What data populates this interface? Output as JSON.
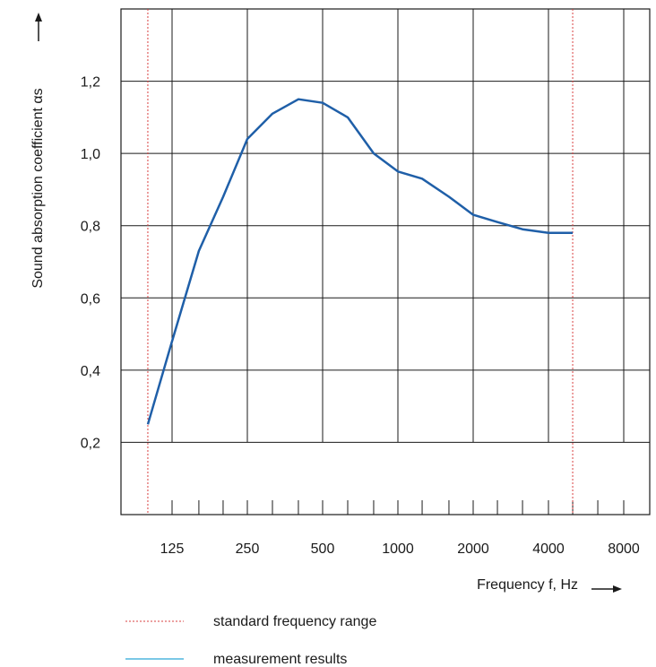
{
  "chart_data": {
    "type": "line",
    "xlabel": "Frequency f, Hz",
    "ylabel": "Sound absorption coefficient αs",
    "x_tick_labels": [
      "125",
      "250",
      "500",
      "1000",
      "2000",
      "4000",
      "8000"
    ],
    "y_tick_labels": [
      "0,2",
      "0,4",
      "0,6",
      "0,8",
      "1,0",
      "1,2"
    ],
    "y_ticks": [
      0.2,
      0.4,
      0.6,
      0.8,
      1.0,
      1.2
    ],
    "ylim": [
      0.0,
      1.4
    ],
    "x_scale": "log (one-third octave)",
    "grid": true,
    "standard_range_hz": [
      100,
      5000
    ],
    "series": [
      {
        "name": "measurement results",
        "color": "#1f5fa8",
        "x": [
          100,
          125,
          160,
          200,
          250,
          315,
          400,
          500,
          630,
          800,
          1000,
          1250,
          1600,
          2000,
          2500,
          3150,
          4000,
          5000
        ],
        "values": [
          0.25,
          0.48,
          0.73,
          0.88,
          1.04,
          1.11,
          1.15,
          1.14,
          1.1,
          1.0,
          0.95,
          0.93,
          0.88,
          0.83,
          0.81,
          0.79,
          0.78,
          0.78
        ]
      }
    ],
    "legend": [
      {
        "label": "standard frequency range",
        "style": "dotted",
        "color": "#d94040"
      },
      {
        "label": "measurement results",
        "style": "solid",
        "color": "#2aa8d8"
      }
    ]
  }
}
